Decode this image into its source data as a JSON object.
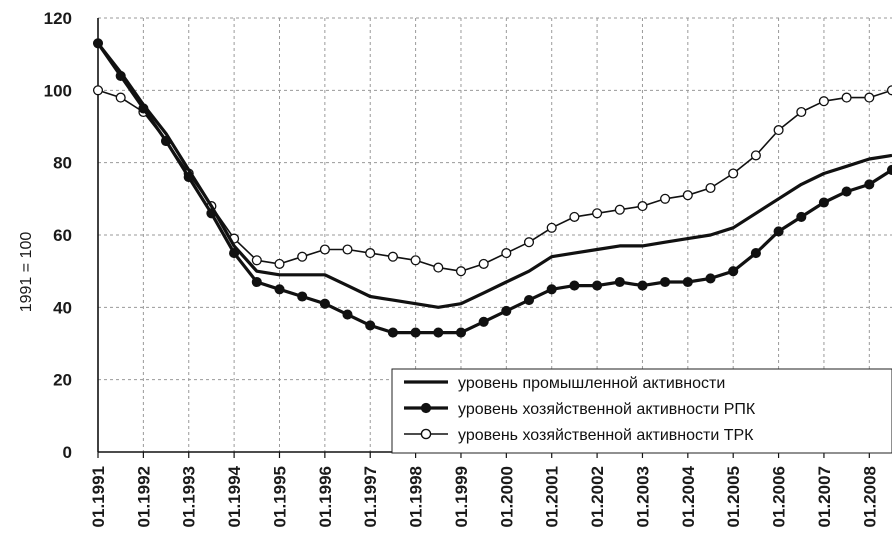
{
  "chart_data": {
    "type": "line",
    "title": "",
    "xlabel": "",
    "ylabel": "1991 = 100",
    "ylim": [
      0,
      120
    ],
    "yticks": [
      "0",
      "20",
      "40",
      "60",
      "80",
      "100",
      "120"
    ],
    "xlim": [
      1991.0,
      2008.5
    ],
    "xtick_labels": [
      "01.1991",
      "01.1992",
      "01.1993",
      "01.1994",
      "01.1995",
      "01.1996",
      "01.1997",
      "01.1998",
      "01.1999",
      "01.2000",
      "01.2001",
      "01.2002",
      "01.2003",
      "01.2004",
      "01.2005",
      "01.2006",
      "01.2007",
      "01.2008"
    ],
    "grid": true,
    "legend_position": "bottom-right",
    "series": [
      {
        "name": "уровень промышленной активности",
        "marker": "none",
        "color": "#111111",
        "x": [
          "01.1991",
          "07.1991",
          "01.1992",
          "07.1992",
          "01.1993",
          "07.1993",
          "01.1994",
          "07.1994",
          "01.1995",
          "07.1995",
          "01.1996",
          "07.1996",
          "01.1997",
          "07.1997",
          "01.1998",
          "07.1998",
          "01.1999",
          "07.1999",
          "01.2000",
          "07.2000",
          "01.2001",
          "07.2001",
          "01.2002",
          "07.2002",
          "01.2003",
          "07.2003",
          "01.2004",
          "07.2004",
          "01.2005",
          "07.2005",
          "01.2006",
          "07.2006",
          "01.2007",
          "07.2007",
          "01.2008",
          "07.2008"
        ],
        "values": [
          113,
          105,
          96,
          88,
          78,
          68,
          57,
          50,
          49,
          49,
          49,
          46,
          43,
          42,
          41,
          40,
          41,
          44,
          47,
          50,
          54,
          55,
          56,
          57,
          57,
          58,
          59,
          60,
          62,
          66,
          70,
          74,
          77,
          79,
          81,
          82
        ]
      },
      {
        "name": "уровень хозяйственной активности РПК",
        "marker": "filled-circle",
        "color": "#111111",
        "x": [
          "01.1991",
          "07.1991",
          "01.1992",
          "07.1992",
          "01.1993",
          "07.1993",
          "01.1994",
          "07.1994",
          "01.1995",
          "07.1995",
          "01.1996",
          "07.1996",
          "01.1997",
          "07.1997",
          "01.1998",
          "07.1998",
          "01.1999",
          "07.1999",
          "01.2000",
          "07.2000",
          "01.2001",
          "07.2001",
          "01.2002",
          "07.2002",
          "01.2003",
          "07.2003",
          "01.2004",
          "07.2004",
          "01.2005",
          "07.2005",
          "01.2006",
          "07.2006",
          "01.2007",
          "07.2007",
          "01.2008",
          "07.2008"
        ],
        "values": [
          113,
          104,
          95,
          86,
          76,
          66,
          55,
          47,
          45,
          43,
          41,
          38,
          35,
          33,
          33,
          33,
          33,
          36,
          39,
          42,
          45,
          46,
          46,
          47,
          46,
          47,
          47,
          48,
          50,
          55,
          61,
          65,
          69,
          72,
          74,
          78
        ]
      },
      {
        "name": "уровень хозяйственной активности ТРК",
        "marker": "open-circle",
        "color": "#ffffff",
        "x": [
          "01.1991",
          "07.1991",
          "01.1992",
          "07.1992",
          "01.1993",
          "07.1993",
          "01.1994",
          "07.1994",
          "01.1995",
          "07.1995",
          "01.1996",
          "07.1996",
          "01.1997",
          "07.1997",
          "01.1998",
          "07.1998",
          "01.1999",
          "07.1999",
          "01.2000",
          "07.2000",
          "01.2001",
          "07.2001",
          "01.2002",
          "07.2002",
          "01.2003",
          "07.2003",
          "01.2004",
          "07.2004",
          "01.2005",
          "07.2005",
          "01.2006",
          "07.2006",
          "01.2007",
          "07.2007",
          "01.2008",
          "07.2008"
        ],
        "values": [
          100,
          98,
          94,
          86,
          77,
          68,
          59,
          53,
          52,
          54,
          56,
          56,
          55,
          54,
          53,
          51,
          50,
          52,
          55,
          58,
          62,
          65,
          66,
          67,
          68,
          70,
          71,
          73,
          77,
          82,
          89,
          94,
          97,
          98,
          98,
          100
        ]
      }
    ]
  }
}
